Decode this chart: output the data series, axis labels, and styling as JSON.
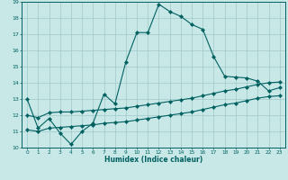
{
  "xlabel": "Humidex (Indice chaleur)",
  "bg_color": "#c8e8e8",
  "grid_color": "#a0c8c8",
  "line_color": "#006060",
  "xlim": [
    -0.5,
    23.5
  ],
  "ylim": [
    10,
    19
  ],
  "yticks": [
    10,
    11,
    12,
    13,
    14,
    15,
    16,
    17,
    18,
    19
  ],
  "xticks": [
    0,
    1,
    2,
    3,
    4,
    5,
    6,
    7,
    8,
    9,
    10,
    11,
    12,
    13,
    14,
    15,
    16,
    17,
    18,
    19,
    20,
    21,
    22,
    23
  ],
  "series1_x": [
    0,
    1,
    2,
    3,
    4,
    5,
    6,
    7,
    8,
    9,
    10,
    11,
    12,
    13,
    14,
    15,
    16,
    17,
    18,
    19,
    20,
    21,
    22,
    23
  ],
  "series1_y": [
    13.0,
    11.2,
    11.8,
    10.9,
    10.2,
    11.0,
    11.5,
    13.3,
    12.7,
    15.3,
    17.1,
    17.1,
    18.85,
    18.4,
    18.1,
    17.6,
    17.3,
    15.6,
    14.4,
    14.35,
    14.3,
    14.1,
    13.5,
    13.7
  ],
  "series2_x": [
    0,
    1,
    2,
    3,
    4,
    5,
    6,
    7,
    8,
    9,
    10,
    11,
    12,
    13,
    14,
    15,
    16,
    17,
    18,
    19,
    20,
    21,
    22,
    23
  ],
  "series2_y": [
    12.0,
    11.85,
    12.15,
    12.2,
    12.2,
    12.25,
    12.3,
    12.35,
    12.4,
    12.45,
    12.55,
    12.65,
    12.75,
    12.85,
    12.95,
    13.05,
    13.2,
    13.35,
    13.5,
    13.6,
    13.75,
    13.9,
    14.0,
    14.05
  ],
  "series3_x": [
    0,
    1,
    2,
    3,
    4,
    5,
    6,
    7,
    8,
    9,
    10,
    11,
    12,
    13,
    14,
    15,
    16,
    17,
    18,
    19,
    20,
    21,
    22,
    23
  ],
  "series3_y": [
    11.1,
    11.0,
    11.2,
    11.25,
    11.3,
    11.35,
    11.4,
    11.5,
    11.55,
    11.6,
    11.7,
    11.8,
    11.9,
    12.0,
    12.1,
    12.2,
    12.35,
    12.5,
    12.65,
    12.75,
    12.9,
    13.05,
    13.15,
    13.2
  ]
}
